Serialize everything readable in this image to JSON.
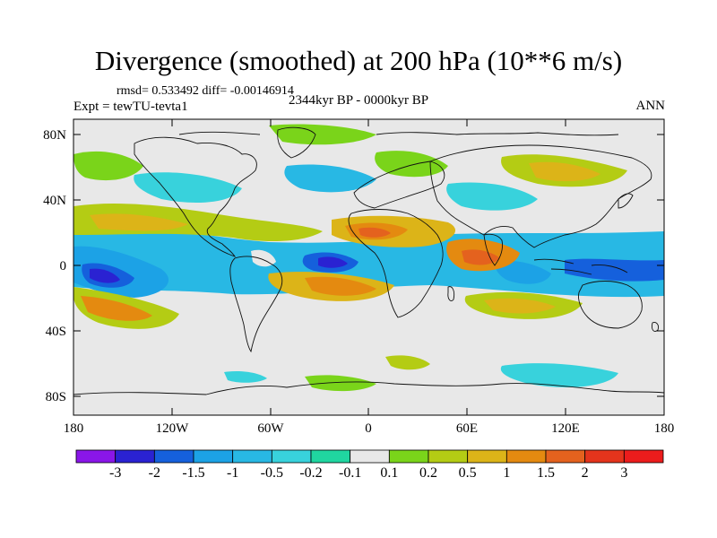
{
  "title": "Divergence (smoothed) at 200 hPa (10**6 m/s)",
  "stats": "rmsd= 0.533492 diff= -0.00146914",
  "experiment": "Expt = tewTU-tevta1",
  "period": "2344kyr BP - 0000kyr BP",
  "season": "ANN",
  "axes": {
    "lat_labels": [
      "80N",
      "40N",
      "0",
      "40S",
      "80S"
    ],
    "lon_labels": [
      "180",
      "120W",
      "60W",
      "0",
      "60E",
      "120E",
      "180"
    ]
  },
  "colorbar": {
    "labels": [
      "-3",
      "-2",
      "-1.5",
      "-1",
      "-0.5",
      "-0.2",
      "-0.1",
      "0.1",
      "0.2",
      "0.5",
      "1",
      "1.5",
      "2",
      "3"
    ],
    "colors": [
      "#8a16e8",
      "#2a22d2",
      "#1560dc",
      "#1ca2e6",
      "#28b8e4",
      "#38d2dc",
      "#20d6a0",
      "#e8e8e8",
      "#7ad41a",
      "#b4cc14",
      "#dcb418",
      "#e48a10",
      "#e4621e",
      "#e4341c",
      "#ec1c1c"
    ]
  }
}
